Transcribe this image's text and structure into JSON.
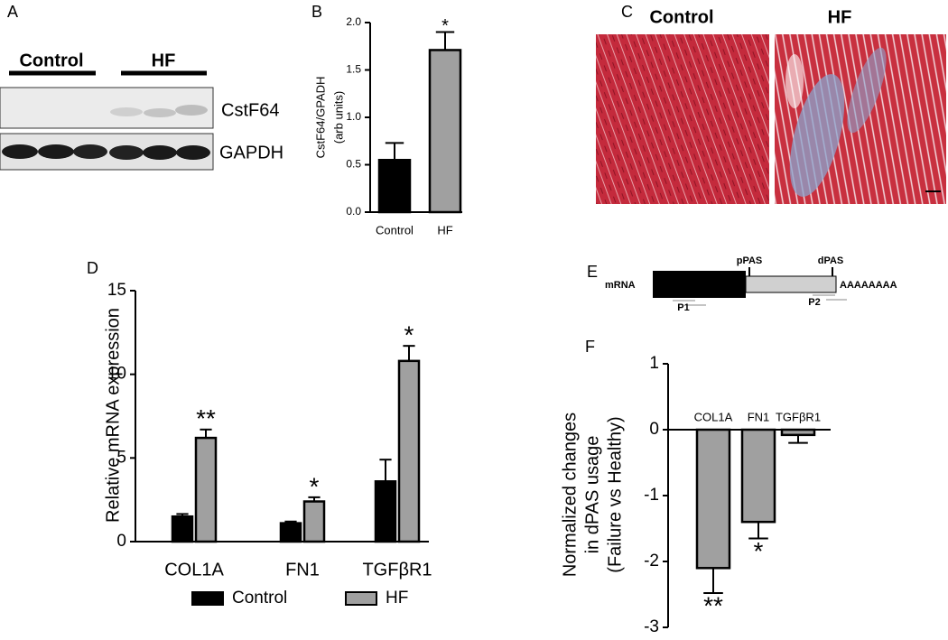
{
  "panel_labels": [
    "A",
    "B",
    "C",
    "D",
    "E",
    "F"
  ],
  "blot": {
    "groups": [
      "Control",
      "HF"
    ],
    "bands": [
      "CstF64",
      "GAPDH"
    ]
  },
  "histology": {
    "titles": [
      "Control",
      "HF"
    ]
  },
  "diagram": {
    "labels": [
      "mRNA",
      "pPAS",
      "dPAS",
      "AAAAAAAA",
      "P1",
      "P2"
    ]
  },
  "chart_data": [
    {
      "type": "bar",
      "y_label": [
        "CstF64/GPADH",
        "(arb units)"
      ],
      "categories": [
        "Control",
        "HF"
      ],
      "series": [
        {
          "color": "#000000",
          "values": [
            0.55,
            1.71
          ],
          "errors": [
            0.18,
            0.19
          ],
          "markers": [
            null,
            "*"
          ]
        }
      ],
      "colors": [
        "#000000",
        "#a0a0a0"
      ],
      "ylim": [
        0,
        2.0
      ],
      "yticks": [
        {
          "value": 0,
          "label": "0.0"
        },
        {
          "value": 0.5,
          "label": "0.5"
        },
        {
          "value": 1,
          "label": "1.0"
        },
        {
          "value": 1.5,
          "label": "1.5"
        },
        {
          "value": 2,
          "label": "2.0"
        }
      ]
    },
    {
      "type": "bar",
      "y_label": [
        "Relative mRNA expression"
      ],
      "categories": [
        "COL1A",
        "FN1",
        "TGFβR1"
      ],
      "series": [
        {
          "name": "Control",
          "color": "#000000",
          "values": [
            1.5,
            1.1,
            3.6
          ],
          "errors": [
            0.15,
            0.1,
            1.3
          ]
        },
        {
          "name": "HF",
          "color": "#a0a0a0",
          "values": [
            6.2,
            2.4,
            10.8
          ],
          "errors": [
            0.5,
            0.25,
            0.9
          ],
          "markers": [
            "**",
            "*",
            "*"
          ]
        }
      ],
      "legend": "bottom",
      "ylim": [
        0,
        15
      ],
      "yticks": [
        0,
        5,
        10,
        15
      ]
    },
    {
      "type": "bar",
      "y_label": [
        "Normalized changes",
        "in dPAS usage",
        "(Failure vs Healthy)"
      ],
      "categories": [
        "COL1A",
        "FN1",
        "TGFβR1"
      ],
      "series": [
        {
          "color": "#a0a0a0",
          "values": [
            -2.1,
            -1.4,
            -0.08
          ],
          "errors": [
            0.38,
            0.25,
            0.12
          ],
          "markers": [
            "**",
            "*",
            null
          ]
        }
      ],
      "ylim": [
        -3,
        1
      ],
      "yticks": [
        1,
        0,
        -1,
        -2,
        -3
      ]
    }
  ]
}
